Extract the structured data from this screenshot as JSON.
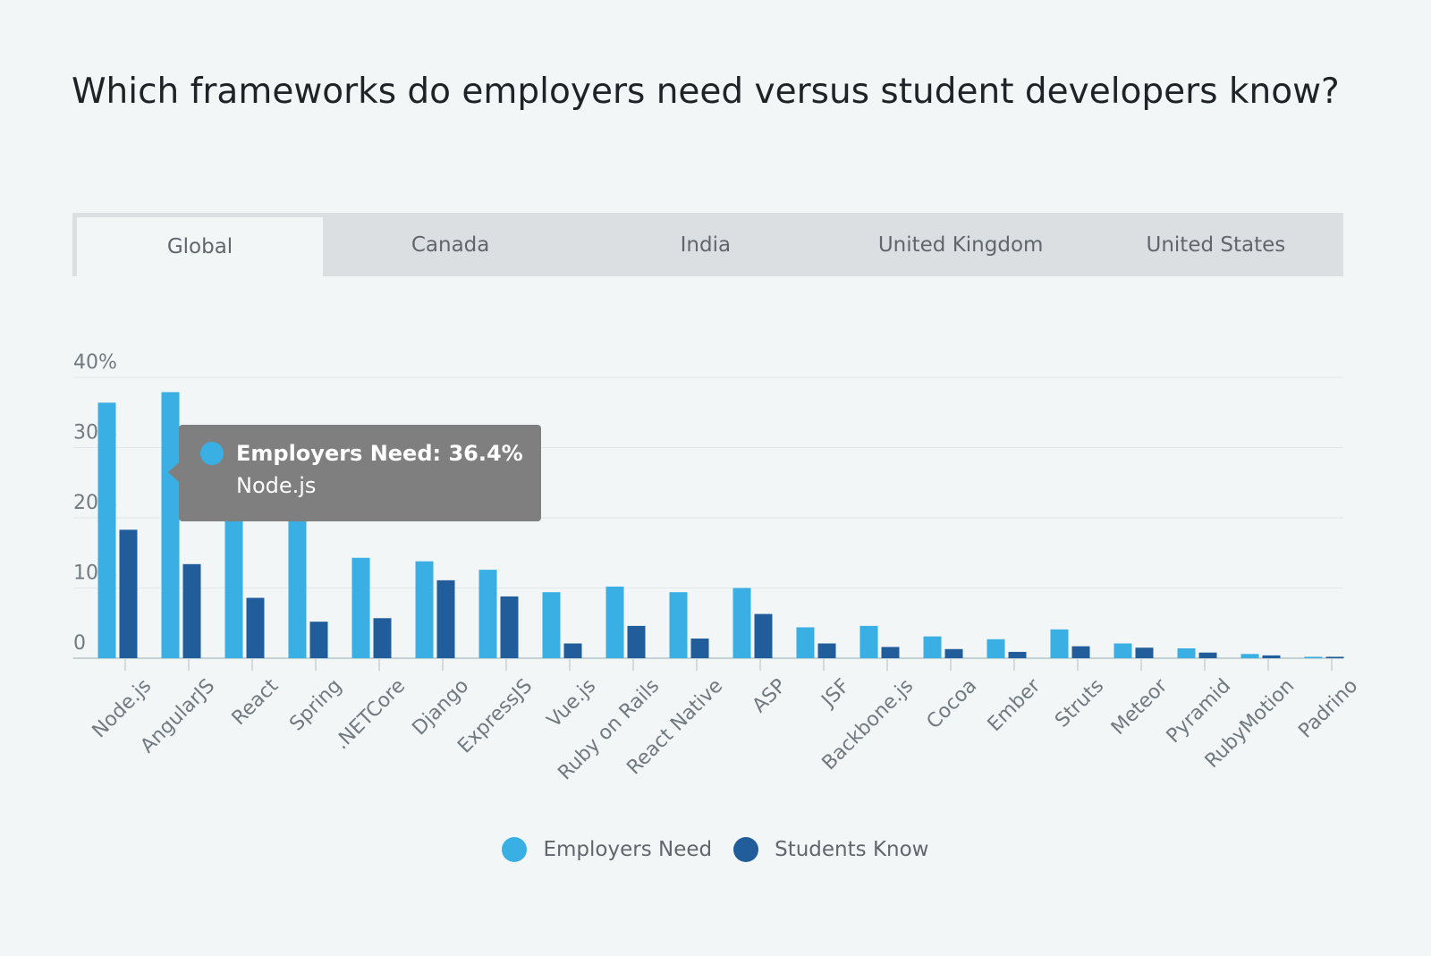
{
  "page": {
    "title": "Which frameworks do employers need versus student developers know?"
  },
  "tabs": [
    {
      "label": "Global",
      "active": true
    },
    {
      "label": "Canada",
      "active": false
    },
    {
      "label": "India",
      "active": false
    },
    {
      "label": "United Kingdom",
      "active": false
    },
    {
      "label": "United States",
      "active": false
    }
  ],
  "colors": {
    "employers": "#3aafe3",
    "students": "#215d9b",
    "grid": "#e3e7e9",
    "axis_text": "#707a80"
  },
  "tooltip": {
    "series_label": "Employers Need: 36.4%",
    "category": "Node.js"
  },
  "legend": {
    "employers": "Employers Need",
    "students": "Students Know"
  },
  "chart_data": {
    "type": "bar",
    "categories": [
      "Node.js",
      "AngularJS",
      "React",
      "Spring",
      ".NETCore",
      "Django",
      "ExpressJS",
      "Vue.js",
      "Ruby on Rails",
      "React Native",
      "ASP",
      "JSF",
      "Backbone.js",
      "Cocoa",
      "Ember",
      "Struts",
      "Meteor",
      "Pyramid",
      "RubyMotion",
      "Padrino"
    ],
    "series": [
      {
        "name": "Employers Need",
        "values": [
          36.4,
          37.9,
          20.5,
          20.5,
          14.3,
          13.8,
          12.6,
          9.4,
          10.2,
          9.4,
          10.0,
          4.4,
          4.6,
          3.1,
          2.7,
          4.1,
          2.1,
          1.4,
          0.6,
          0.2
        ]
      },
      {
        "name": "Students Know",
        "values": [
          18.3,
          13.4,
          8.6,
          5.2,
          5.7,
          11.1,
          8.8,
          2.1,
          4.6,
          2.8,
          6.3,
          2.1,
          1.6,
          1.3,
          0.9,
          1.7,
          1.5,
          0.8,
          0.4,
          0.2
        ]
      }
    ],
    "y_ticks": [
      "0",
      "10%",
      "20%",
      "30%",
      "40%"
    ],
    "ylim": [
      0,
      40
    ],
    "grid": true,
    "legend_position": "bottom-center",
    "xlabel": "",
    "ylabel": ""
  }
}
